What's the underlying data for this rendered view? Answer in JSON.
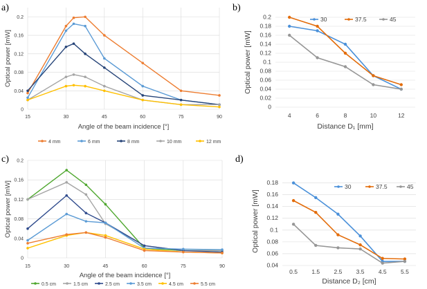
{
  "chart_data": [
    {
      "id": "a",
      "panel_label": "a)",
      "type": "line",
      "xlabel": "Angle of the beam incidence [°]",
      "ylabel": "Optical power [mW]",
      "x_ticks": [
        "15",
        "30",
        "45",
        "60",
        "75",
        "90"
      ],
      "y_ticks": [
        "0",
        "0.04",
        "0.08",
        "0.12",
        "0.16",
        "0.2"
      ],
      "xlim": [
        15,
        90
      ],
      "ylim": [
        0,
        0.22
      ],
      "x": [
        15,
        30,
        33,
        37.5,
        45,
        60,
        75,
        90
      ],
      "series": [
        {
          "name": "4 mm",
          "color": "#ed7d31",
          "values": [
            0.035,
            0.18,
            0.198,
            0.2,
            0.16,
            0.1,
            0.04,
            0.03
          ]
        },
        {
          "name": "6 mm",
          "color": "#5b9bd5",
          "values": [
            0.025,
            0.17,
            0.185,
            0.18,
            0.11,
            0.05,
            0.02,
            0.01
          ]
        },
        {
          "name": "8 mm",
          "color": "#264478",
          "values": [
            0.04,
            0.135,
            0.142,
            0.12,
            0.09,
            0.03,
            0.02,
            0.01
          ]
        },
        {
          "name": "10 mm",
          "color": "#a5a5a5",
          "values": [
            0.02,
            0.07,
            0.075,
            0.07,
            0.05,
            0.02,
            0.01,
            0.01
          ]
        },
        {
          "name": "12 mm",
          "color": "#ffc000",
          "values": [
            0.02,
            0.05,
            0.052,
            0.05,
            0.04,
            0.02,
            0.01,
            0.005
          ]
        }
      ]
    },
    {
      "id": "b",
      "panel_label": "b)",
      "type": "line",
      "xlabel": "Distance D₁ [mm]",
      "ylabel": "Optical power [mW]",
      "categories": [
        "4",
        "6",
        "8",
        "10",
        "12"
      ],
      "y_ticks": [
        "0",
        "0.02",
        "0.04",
        "0.06",
        "0.08",
        "0.1",
        "0.12",
        "0.14",
        "0.16",
        "0.18",
        "0.2"
      ],
      "ylim": [
        0,
        0.2
      ],
      "series": [
        {
          "name": "30",
          "color": "#4a90d9",
          "values": [
            0.18,
            0.17,
            0.14,
            0.07,
            0.04
          ]
        },
        {
          "name": "37.5",
          "color": "#e36c0a",
          "values": [
            0.2,
            0.18,
            0.12,
            0.07,
            0.05
          ]
        },
        {
          "name": "45",
          "color": "#969696",
          "values": [
            0.16,
            0.11,
            0.09,
            0.05,
            0.04
          ]
        }
      ]
    },
    {
      "id": "c",
      "panel_label": "c)",
      "type": "line",
      "xlabel": "Angle of the beam incidence [°]",
      "ylabel": "Optical power [mW]",
      "x_ticks": [
        "15",
        "30",
        "45",
        "60",
        "75",
        "90"
      ],
      "y_ticks": [
        "0",
        "0.04",
        "0.08",
        "0.12",
        "0.16",
        "0.2"
      ],
      "xlim": [
        15,
        90
      ],
      "ylim": [
        0,
        0.2
      ],
      "x": [
        15,
        30,
        37.5,
        45,
        60,
        75,
        90
      ],
      "series": [
        {
          "name": "0.5 cm",
          "color": "#4ea72e",
          "values": [
            0.12,
            0.18,
            0.15,
            0.11,
            0.02,
            0.015,
            0.015
          ]
        },
        {
          "name": "1.5 cm",
          "color": "#a5a5a5",
          "values": [
            0.12,
            0.155,
            0.13,
            0.07,
            0.025,
            0.015,
            0.015
          ]
        },
        {
          "name": "2.5 cm",
          "color": "#2e4a8c",
          "values": [
            0.06,
            0.128,
            0.092,
            0.072,
            0.025,
            0.015,
            0.012
          ]
        },
        {
          "name": "3.5 cm",
          "color": "#5b9bd5",
          "values": [
            0.036,
            0.09,
            0.075,
            0.072,
            0.02,
            0.018,
            0.017
          ]
        },
        {
          "name": "4.5 cm",
          "color": "#ffc000",
          "values": [
            0.02,
            0.046,
            0.052,
            0.046,
            0.018,
            0.012,
            0.01
          ]
        },
        {
          "name": "5.5 cm",
          "color": "#ed7d31",
          "values": [
            0.03,
            0.048,
            0.052,
            0.042,
            0.015,
            0.012,
            0.01
          ]
        }
      ]
    },
    {
      "id": "d",
      "panel_label": "d)",
      "type": "line",
      "xlabel": "Distance D₂ [cm]",
      "ylabel": "Optical power [mW]",
      "categories": [
        "0.5",
        "1.5",
        "2.5",
        "3.5",
        "4.5",
        "5.5"
      ],
      "y_ticks": [
        "0.04",
        "0.06",
        "0.08",
        "0.1",
        "0.12",
        "0.14",
        "0.16",
        "0.18"
      ],
      "ylim": [
        0.04,
        0.19
      ],
      "series": [
        {
          "name": "30",
          "color": "#4a90d9",
          "values": [
            0.18,
            0.155,
            0.127,
            0.09,
            0.047,
            0.047
          ]
        },
        {
          "name": "37.5",
          "color": "#e36c0a",
          "values": [
            0.15,
            0.13,
            0.092,
            0.075,
            0.052,
            0.051
          ]
        },
        {
          "name": "45",
          "color": "#969696",
          "values": [
            0.11,
            0.074,
            0.07,
            0.068,
            0.044,
            0.047
          ]
        }
      ]
    }
  ]
}
